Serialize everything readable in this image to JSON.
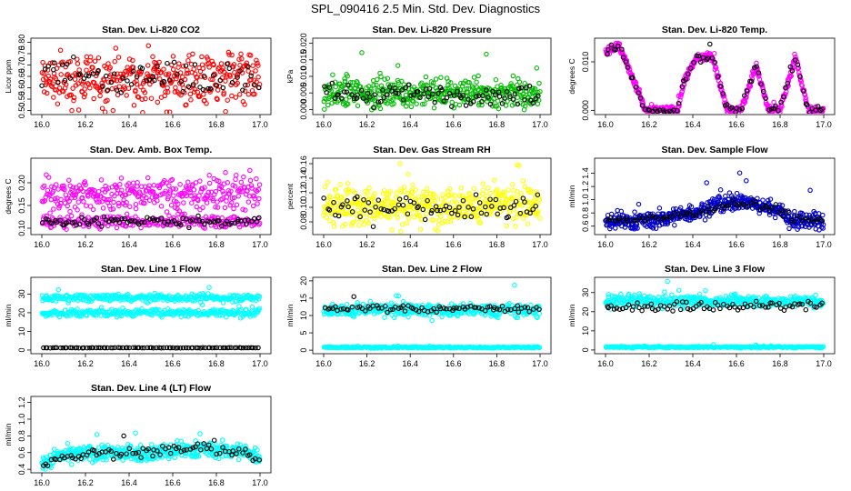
{
  "figure": {
    "title": "SPL_090416  2.5 Min. Std. Dev. Diagnostics"
  },
  "chart_data": [
    {
      "type": "scatter",
      "title": "Stan. Dev. Li-820 CO2",
      "xlabel": "",
      "ylabel": "Licor ppm",
      "xlim": [
        16.0,
        17.0
      ],
      "ylim": [
        0.49,
        0.81
      ],
      "xticks": [
        "16.0",
        "16.2",
        "16.4",
        "16.6",
        "16.8",
        "17.0"
      ],
      "yticks": [
        "0.50",
        "0.55",
        "0.60",
        "0.65",
        "0.70",
        "0.75",
        "0.80"
      ],
      "series": [
        {
          "color": "#ff0000",
          "band": [
            0.55,
            0.71
          ],
          "spread": 0.04,
          "n": 380
        },
        {
          "color": "#000000",
          "band": [
            0.58,
            0.7
          ],
          "spread": 0.02,
          "n": 70
        }
      ]
    },
    {
      "type": "scatter",
      "title": "Stan. Dev. Li-820 Pressure",
      "xlabel": "",
      "ylabel": "kPa",
      "xlim": [
        16.0,
        17.0
      ],
      "ylim": [
        -0.001,
        0.021
      ],
      "xticks": [
        "16.0",
        "16.2",
        "16.4",
        "16.6",
        "16.8",
        "17.0"
      ],
      "yticks": [
        "0.000",
        "0.005",
        "0.010",
        "0.015",
        "0.020"
      ],
      "series": [
        {
          "color": "#00bb00",
          "band": [
            0.003,
            0.007
          ],
          "spread": 0.002,
          "n": 420
        },
        {
          "color": "#000000",
          "band": [
            0.003,
            0.006
          ],
          "spread": 0.0012,
          "n": 90
        }
      ]
    },
    {
      "type": "scatter",
      "title": "Stan. Dev. Li-820 Temp.",
      "xlabel": "",
      "ylabel": "degrees C",
      "xlim": [
        16.0,
        17.0
      ],
      "ylim": [
        -0.0005,
        0.0145
      ],
      "xticks": [
        "16.0",
        "16.2",
        "16.4",
        "16.6",
        "16.8",
        "17.0"
      ],
      "yticks": [
        "0.000",
        "0.010"
      ],
      "series": [
        {
          "color": "#ff00ff",
          "profile": [
            [
              16.0,
              0.012
            ],
            [
              16.06,
              0.0135
            ],
            [
              16.15,
              0.004
            ],
            [
              16.18,
              0.0
            ],
            [
              16.33,
              0.0
            ],
            [
              16.36,
              0.006
            ],
            [
              16.42,
              0.011
            ],
            [
              16.49,
              0.011
            ],
            [
              16.56,
              0.0
            ],
            [
              16.62,
              0.0
            ],
            [
              16.69,
              0.009
            ],
            [
              16.75,
              0.0
            ],
            [
              16.8,
              0.0
            ],
            [
              16.87,
              0.011
            ],
            [
              16.93,
              0.0
            ],
            [
              17.0,
              0.0
            ]
          ],
          "spread": 0.0004,
          "n": 520
        },
        {
          "color": "#000000",
          "profile": [
            [
              16.0,
              0.012
            ],
            [
              16.06,
              0.0135
            ],
            [
              16.15,
              0.004
            ],
            [
              16.18,
              0.0
            ],
            [
              16.33,
              0.0
            ],
            [
              16.36,
              0.006
            ],
            [
              16.42,
              0.011
            ],
            [
              16.49,
              0.011
            ],
            [
              16.56,
              0.0
            ],
            [
              16.62,
              0.0
            ],
            [
              16.69,
              0.009
            ],
            [
              16.75,
              0.0
            ],
            [
              16.8,
              0.0
            ],
            [
              16.87,
              0.011
            ],
            [
              16.93,
              0.0
            ],
            [
              17.0,
              0.0
            ]
          ],
          "spread": 0.0004,
          "n": 90
        }
      ]
    },
    {
      "type": "scatter",
      "title": "Stan. Dev. Amb. Box Temp.",
      "xlabel": "",
      "ylabel": "degrees C",
      "xlim": [
        16.0,
        17.0
      ],
      "ylim": [
        0.09,
        0.25
      ],
      "xticks": [
        "16.0",
        "16.2",
        "16.4",
        "16.6",
        "16.8",
        "17.0"
      ],
      "yticks": [
        "0.10",
        "0.15",
        "0.20"
      ],
      "series": [
        {
          "color": "#ff00ff",
          "band": [
            0.16,
            0.19
          ],
          "spread": 0.015,
          "n": 320
        },
        {
          "color": "#ff00ff",
          "band": [
            0.11,
            0.12
          ],
          "spread": 0.006,
          "n": 260
        },
        {
          "color": "#000000",
          "band": [
            0.11,
            0.12
          ],
          "spread": 0.005,
          "n": 90
        }
      ]
    },
    {
      "type": "scatter",
      "title": "Stan. Dev. Gas Stream RH",
      "xlabel": "",
      "ylabel": "percent",
      "xlim": [
        16.0,
        17.0
      ],
      "ylim": [
        0.065,
        0.165
      ],
      "xticks": [
        "16.0",
        "16.2",
        "16.4",
        "16.6",
        "16.8",
        "17.0"
      ],
      "yticks": [
        "0.08",
        "0.10",
        "0.12",
        "0.14",
        "0.16"
      ],
      "series": [
        {
          "color": "#ffff00",
          "band": [
            0.095,
            0.11
          ],
          "spread": 0.012,
          "n": 480
        },
        {
          "color": "#000000",
          "band": [
            0.095,
            0.105
          ],
          "spread": 0.008,
          "n": 80
        }
      ]
    },
    {
      "type": "scatter",
      "title": "Stan. Dev. Sample Flow",
      "xlabel": "",
      "ylabel": "ml/min",
      "xlim": [
        16.0,
        17.0
      ],
      "ylim": [
        0.5,
        1.6
      ],
      "xticks": [
        "16.0",
        "16.2",
        "16.4",
        "16.6",
        "16.8",
        "17.0"
      ],
      "yticks": [
        "0.6",
        "0.8",
        "1.0",
        "1.2",
        "1.4"
      ],
      "series": [
        {
          "color": "#0000cc",
          "profile": [
            [
              16.0,
              0.68
            ],
            [
              16.2,
              0.68
            ],
            [
              16.4,
              0.8
            ],
            [
              16.6,
              0.98
            ],
            [
              16.8,
              0.85
            ],
            [
              16.85,
              0.68
            ],
            [
              17.0,
              0.68
            ]
          ],
          "spread": 0.06,
          "n": 520
        },
        {
          "color": "#000000",
          "profile": [
            [
              16.0,
              0.7
            ],
            [
              16.2,
              0.7
            ],
            [
              16.4,
              0.8
            ],
            [
              16.6,
              0.96
            ],
            [
              16.8,
              0.85
            ],
            [
              16.85,
              0.7
            ],
            [
              17.0,
              0.7
            ]
          ],
          "spread": 0.03,
          "n": 80
        }
      ]
    },
    {
      "type": "scatter",
      "title": "Stan. Dev. Line 1 Flow",
      "xlabel": "",
      "ylabel": "ml/min",
      "xlim": [
        16.0,
        17.0
      ],
      "ylim": [
        -1,
        38
      ],
      "xticks": [
        "16.0",
        "16.2",
        "16.4",
        "16.6",
        "16.8",
        "17.0"
      ],
      "yticks": [
        "0",
        "10",
        "20",
        "30"
      ],
      "series": [
        {
          "color": "#00ffff",
          "band": [
            27,
            29
          ],
          "spread": 0.8,
          "n": 300
        },
        {
          "color": "#00ffff",
          "band": [
            19,
            21
          ],
          "spread": 0.8,
          "n": 300
        },
        {
          "color": "#000000",
          "band": [
            1.2,
            1.2
          ],
          "spread": 0.05,
          "n": 90
        }
      ]
    },
    {
      "type": "scatter",
      "title": "Stan. Dev. Line 2 Flow",
      "xlabel": "",
      "ylabel": "ml/min",
      "xlim": [
        16.0,
        17.0
      ],
      "ylim": [
        -0.5,
        20.5
      ],
      "xticks": [
        "16.0",
        "16.2",
        "16.4",
        "16.6",
        "16.8",
        "17.0"
      ],
      "yticks": [
        "0",
        "5",
        "10",
        "15",
        "20"
      ],
      "series": [
        {
          "color": "#00ffff",
          "band": [
            11,
            12
          ],
          "spread": 0.9,
          "n": 420
        },
        {
          "color": "#00ffff",
          "band": [
            0.8,
            0.8
          ],
          "spread": 0.1,
          "n": 260
        },
        {
          "color": "#000000",
          "band": [
            11.5,
            12.5
          ],
          "spread": 0.4,
          "n": 80
        }
      ]
    },
    {
      "type": "scatter",
      "title": "Stan. Dev. Line 3 Flow",
      "xlabel": "",
      "ylabel": "ml/min",
      "xlim": [
        16.0,
        17.0
      ],
      "ylim": [
        -1,
        37
      ],
      "xticks": [
        "16.0",
        "16.2",
        "16.4",
        "16.6",
        "16.8",
        "17.0"
      ],
      "yticks": [
        "0",
        "10",
        "20",
        "30"
      ],
      "series": [
        {
          "color": "#00ffff",
          "band": [
            24,
            27
          ],
          "spread": 1.2,
          "n": 420
        },
        {
          "color": "#00ffff",
          "band": [
            1.5,
            1.5
          ],
          "spread": 0.2,
          "n": 260
        },
        {
          "color": "#000000",
          "band": [
            21,
            25
          ],
          "spread": 0.7,
          "n": 80
        }
      ]
    },
    {
      "type": "scatter",
      "title": "Stan. Dev. Line 4 (LT) Flow",
      "xlabel": "",
      "ylabel": "ml/min",
      "xlim": [
        16.0,
        17.0
      ],
      "ylim": [
        0.38,
        1.25
      ],
      "xticks": [
        "16.0",
        "16.2",
        "16.4",
        "16.6",
        "16.8",
        "17.0"
      ],
      "yticks": [
        "0.4",
        "0.6",
        "0.8",
        "1.0",
        "1.2"
      ],
      "series": [
        {
          "color": "#00ffff",
          "profile": [
            [
              16.0,
              0.48
            ],
            [
              16.1,
              0.57
            ],
            [
              16.3,
              0.6
            ],
            [
              16.5,
              0.6
            ],
            [
              16.7,
              0.64
            ],
            [
              16.9,
              0.62
            ],
            [
              17.0,
              0.55
            ]
          ],
          "spread": 0.045,
          "n": 480
        },
        {
          "color": "#000000",
          "profile": [
            [
              16.0,
              0.46
            ],
            [
              16.1,
              0.55
            ],
            [
              16.3,
              0.6
            ],
            [
              16.5,
              0.6
            ],
            [
              16.7,
              0.64
            ],
            [
              16.9,
              0.62
            ],
            [
              17.0,
              0.5
            ]
          ],
          "spread": 0.03,
          "n": 80
        }
      ]
    }
  ]
}
